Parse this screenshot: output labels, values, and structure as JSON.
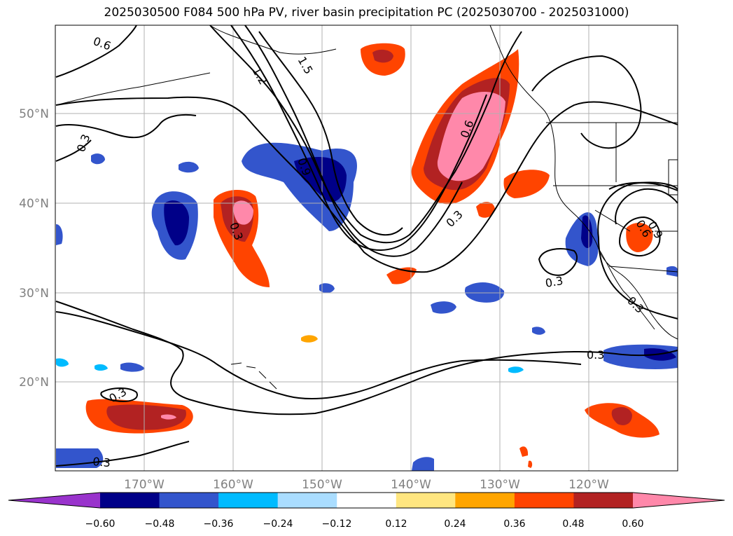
{
  "title": "2025030500 F084 500 hPa PV, river basin precipitation PC (2025030700 - 2025031000)",
  "lat_labels": [
    "50°N",
    "40°N",
    "30°N",
    "20°N"
  ],
  "lon_labels": [
    "170°W",
    "160°W",
    "150°W",
    "140°W",
    "130°W",
    "120°W"
  ],
  "contour_labels": [
    "0.6",
    "1.2",
    "1.5",
    "0.3",
    "0.9",
    "0.3",
    "0.6",
    "0.3",
    "0.3",
    "0.3",
    "0.3",
    "0.3",
    "0.3",
    "0.6",
    "0.9"
  ],
  "colorbar": {
    "ticks": [
      "−0.60",
      "−0.48",
      "−0.36",
      "−0.24",
      "−0.12",
      "0.12",
      "0.24",
      "0.36",
      "0.48",
      "0.60"
    ],
    "colors": [
      "#9933cc",
      "#000088",
      "#3355cc",
      "#00bbff",
      "#aaddff",
      "#ffffff",
      "#ffe680",
      "#ffa500",
      "#ff4400",
      "#b22222",
      "#ff88aa"
    ]
  },
  "colors": {
    "grid": "#b0b0b0",
    "axis_text": "#808080",
    "contour": "#000000"
  }
}
